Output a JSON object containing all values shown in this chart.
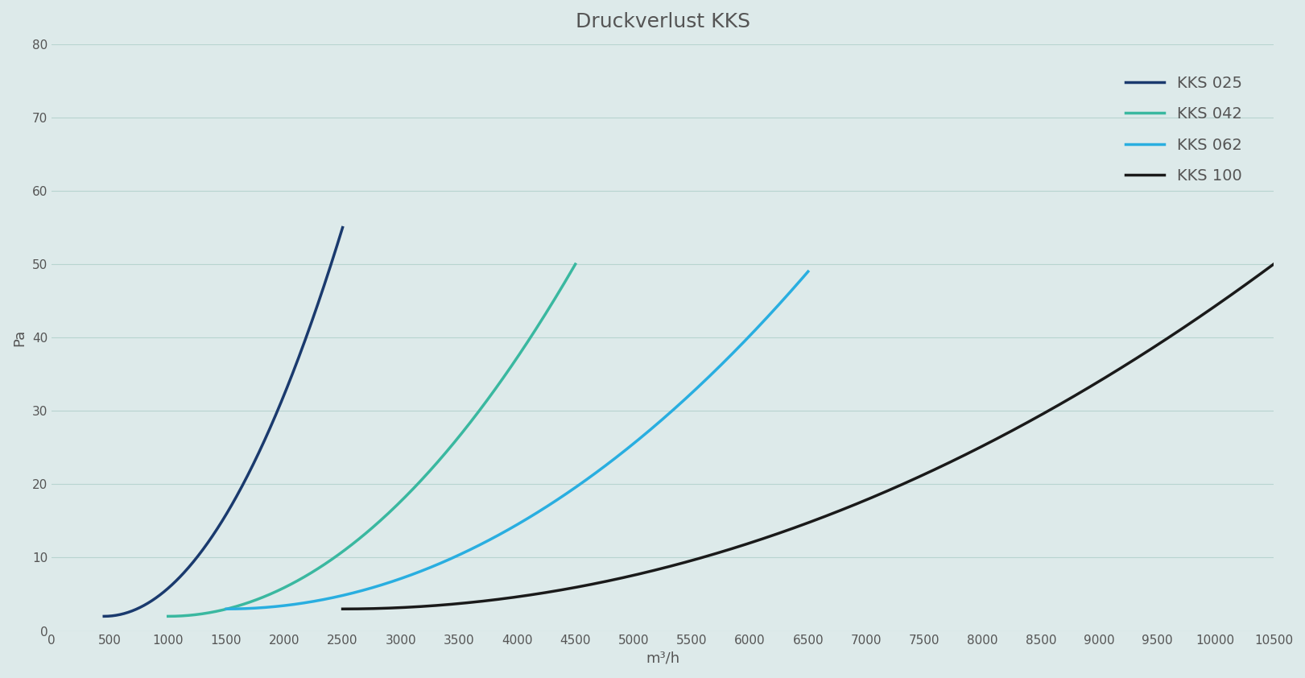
{
  "title": "Druckverlust KKS",
  "xlabel": "m³/h",
  "ylabel": "Pa",
  "background_color": "#ddeaea",
  "plot_bg_color": "#ddeaea",
  "grid_color": "#b8d4d0",
  "title_color": "#555555",
  "axis_label_color": "#555555",
  "tick_label_color": "#555555",
  "xlim": [
    0,
    10500
  ],
  "ylim": [
    0,
    80
  ],
  "xticks": [
    0,
    500,
    1000,
    1500,
    2000,
    2500,
    3000,
    3500,
    4000,
    4500,
    5000,
    5500,
    6000,
    6500,
    7000,
    7500,
    8000,
    8500,
    9000,
    9500,
    10000,
    10500
  ],
  "yticks": [
    0,
    10,
    20,
    30,
    40,
    50,
    60,
    70,
    80
  ],
  "series": [
    {
      "label": "KKS 025",
      "color": "#1a3a6e",
      "x_start": 450,
      "x_end": 2500,
      "y_start": 2.0,
      "y_end": 55.0
    },
    {
      "label": "KKS 042",
      "color": "#3ab8a0",
      "x_start": 1000,
      "x_end": 4500,
      "y_start": 2.0,
      "y_end": 50.0
    },
    {
      "label": "KKS 062",
      "color": "#29aee0",
      "x_start": 1500,
      "x_end": 6500,
      "y_start": 3.0,
      "y_end": 49.0
    },
    {
      "label": "KKS 100",
      "color": "#1a1a1a",
      "x_start": 2500,
      "x_end": 10500,
      "y_start": 3.0,
      "y_end": 50.0
    }
  ],
  "legend": {
    "loc": "upper right",
    "frameon": false,
    "fontsize": 14,
    "handlelength": 2.5,
    "labelspacing": 1.0,
    "borderpad": 1.5
  },
  "title_fontsize": 18,
  "axis_label_fontsize": 13,
  "tick_fontsize": 11,
  "linewidth": 2.5
}
